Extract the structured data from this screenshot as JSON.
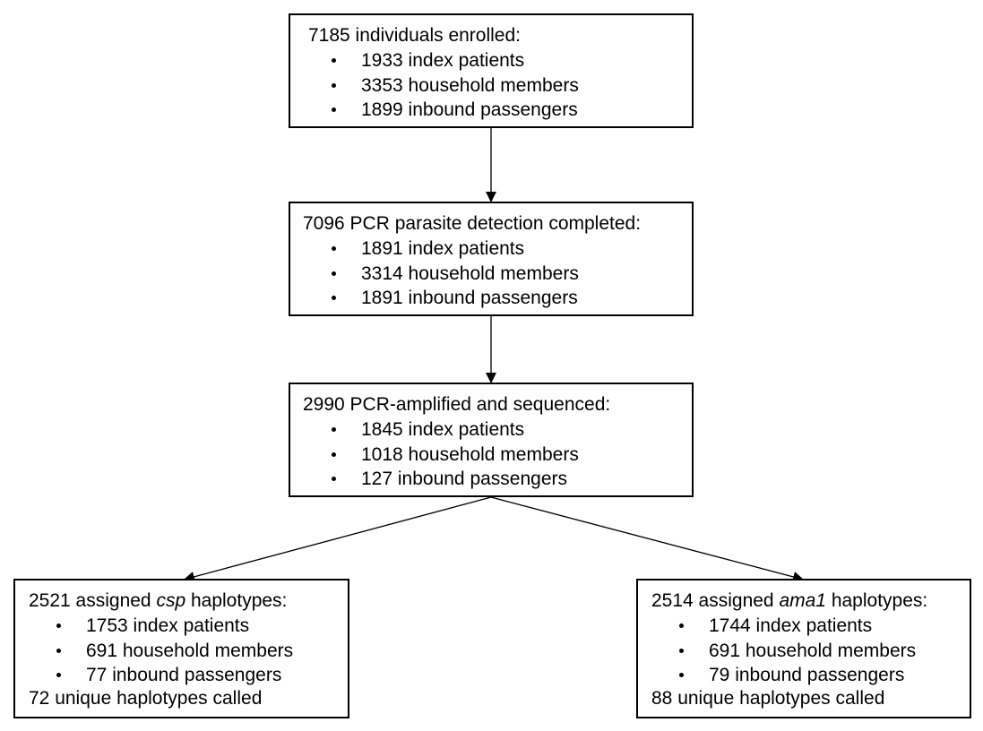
{
  "boxes": {
    "enrolled": {
      "title": "7185 individuals enrolled:",
      "items": [
        "1933 index patients",
        "3353 household members",
        "1899 inbound passengers"
      ]
    },
    "pcr_detection": {
      "title": "7096 PCR parasite detection completed:",
      "items": [
        "1891 index patients",
        "3314 household members",
        "1891 inbound passengers"
      ]
    },
    "sequenced": {
      "title": "2990 PCR-amplified and sequenced:",
      "items": [
        "1845 index patients",
        "1018 household members",
        "127 inbound passengers"
      ]
    },
    "csp": {
      "title_prefix": "2521 assigned ",
      "title_gene": "csp",
      "title_suffix": " haplotypes:",
      "items": [
        "1753 index patients",
        "691 household members",
        "77 inbound passengers"
      ],
      "footer": "72 unique haplotypes called"
    },
    "ama1": {
      "title_prefix": "2514 assigned ",
      "title_gene": "ama1",
      "title_suffix": " haplotypes:",
      "items": [
        "1744 index patients",
        "691 household members",
        "79 inbound passengers"
      ],
      "footer": "88 unique haplotypes called"
    }
  }
}
